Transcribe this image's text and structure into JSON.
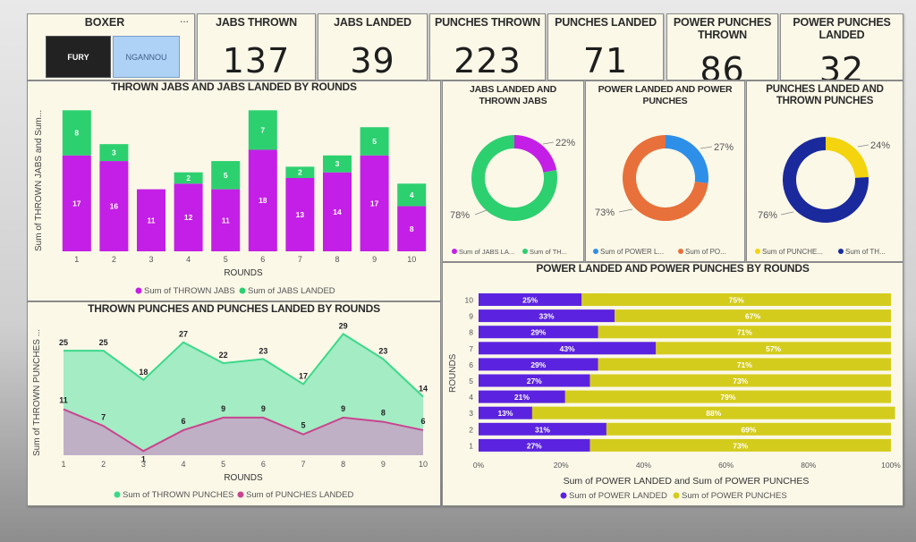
{
  "boxer": {
    "title": "BOXER",
    "more": "...",
    "options": [
      "FURY",
      "NGANNOU"
    ]
  },
  "kpis": [
    {
      "title": "JABS THROWN",
      "value": "137"
    },
    {
      "title": "JABS LANDED",
      "value": "39"
    },
    {
      "title": "PUNCHES THROWN",
      "value": "223"
    },
    {
      "title": "PUNCHES LANDED",
      "value": "71"
    },
    {
      "title": "POWER PUNCHES THROWN",
      "value": "86"
    },
    {
      "title": "POWER PUNCHES LANDED",
      "value": "32"
    }
  ],
  "colors": {
    "purple": "#c41fe6",
    "green": "#2dd06f",
    "blue": "#2e8fe8",
    "orange": "#e8703a",
    "yellow": "#f3d40e",
    "navy": "#1a2a9c",
    "area_green": "#a3ecc4",
    "area_line_green": "#3bd98a",
    "area_pink": "#c4a6c6",
    "area_line_pink": "#c9448f",
    "bar_purple": "#5b23e0",
    "bar_yellow": "#d4cc1c"
  },
  "chart_data": [
    {
      "type": "bar",
      "stacked": true,
      "title": "THROWN JABS AND JABS LANDED BY ROUNDS",
      "xlabel": "ROUNDS",
      "ylabel": "Sum of THROWN JABS and Sum...",
      "categories": [
        "1",
        "2",
        "3",
        "4",
        "5",
        "6",
        "7",
        "8",
        "9",
        "10"
      ],
      "series": [
        {
          "name": "Sum of THROWN JABS",
          "values": [
            17,
            16,
            11,
            12,
            11,
            18,
            13,
            14,
            17,
            8
          ],
          "labels": [
            "17",
            "16",
            "11",
            "12",
            "11",
            "18",
            "13",
            "14",
            "17",
            "8"
          ]
        },
        {
          "name": "Sum of JABS LANDED",
          "values": [
            8,
            3,
            0,
            2,
            5,
            7,
            2,
            3,
            5,
            4
          ],
          "labels": [
            "8",
            "3",
            "",
            "2",
            "5",
            "7",
            "2",
            "3",
            "5",
            "4"
          ]
        }
      ],
      "ylim": [
        0,
        26
      ]
    },
    {
      "type": "pie",
      "donut": true,
      "title": "JABS LANDED AND THROWN JABS",
      "slices": [
        {
          "name": "Sum of JABS LA...",
          "value": 22,
          "label": "22%"
        },
        {
          "name": "Sum of TH...",
          "value": 78,
          "label": "78%"
        }
      ]
    },
    {
      "type": "pie",
      "donut": true,
      "title": "POWER LANDED AND POWER PUNCHES",
      "slices": [
        {
          "name": "Sum of POWER L...",
          "value": 27,
          "label": "27%"
        },
        {
          "name": "Sum of PO...",
          "value": 73,
          "label": "73%"
        }
      ]
    },
    {
      "type": "pie",
      "donut": true,
      "title": "PUNCHES LANDED AND THROWN PUNCHES",
      "slices": [
        {
          "name": "Sum of PUNCHE...",
          "value": 24,
          "label": "24%"
        },
        {
          "name": "Sum of TH...",
          "value": 76,
          "label": "76%"
        }
      ]
    },
    {
      "type": "area",
      "title": "THROWN PUNCHES AND PUNCHES LANDED BY ROUNDS",
      "xlabel": "ROUNDS",
      "ylabel": "Sum of THROWN PUNCHES ...",
      "x": [
        1,
        2,
        3,
        4,
        5,
        6,
        7,
        8,
        9,
        10
      ],
      "series": [
        {
          "name": "Sum of THROWN PUNCHES",
          "values": [
            25,
            25,
            18,
            27,
            22,
            23,
            17,
            29,
            23,
            14
          ],
          "labels": [
            "25",
            "25",
            "18",
            "27",
            "22",
            "23",
            "17",
            "29",
            "23",
            "14"
          ]
        },
        {
          "name": "Sum of PUNCHES LANDED",
          "values": [
            11,
            7,
            1,
            6,
            9,
            9,
            5,
            9,
            8,
            6
          ],
          "labels": [
            "11",
            "7",
            "1",
            "6",
            "9",
            "9",
            "5",
            "9",
            "8",
            "6"
          ]
        }
      ],
      "ylim": [
        0,
        31
      ]
    },
    {
      "type": "bar",
      "orientation": "horizontal",
      "stacked100": true,
      "title": "POWER LANDED AND POWER PUNCHES BY ROUNDS",
      "xlabel": "Sum of POWER LANDED and Sum of POWER PUNCHES",
      "ylabel": "ROUNDS",
      "categories": [
        "10",
        "9",
        "8",
        "7",
        "6",
        "5",
        "4",
        "3",
        "2",
        "1"
      ],
      "series": [
        {
          "name": "Sum of POWER LANDED",
          "values": [
            25,
            33,
            29,
            43,
            29,
            27,
            21,
            13,
            31,
            27
          ],
          "labels": [
            "25%",
            "33%",
            "29%",
            "43%",
            "29%",
            "27%",
            "21%",
            "13%",
            "31%",
            "27%"
          ]
        },
        {
          "name": "Sum of POWER PUNCHES",
          "values": [
            75,
            67,
            71,
            57,
            71,
            73,
            79,
            88,
            69,
            73
          ],
          "labels": [
            "75%",
            "67%",
            "71%",
            "57%",
            "71%",
            "73%",
            "79%",
            "88%",
            "69%",
            "73%"
          ]
        }
      ],
      "xticks": [
        "0%",
        "20%",
        "40%",
        "60%",
        "80%",
        "100%"
      ],
      "xlim": [
        0,
        100
      ]
    }
  ]
}
